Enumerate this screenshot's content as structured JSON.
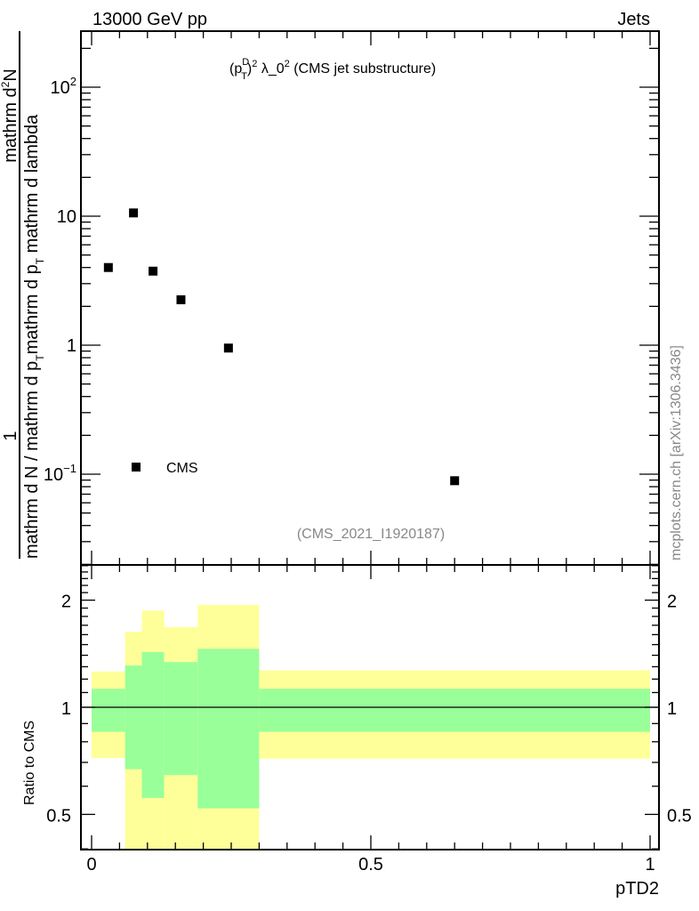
{
  "header": {
    "left": "13000 GeV pp",
    "right": "Jets",
    "watermark": "mcplots.cern.ch [arXiv:1306.3436]"
  },
  "chart_data": [
    {
      "type": "scatter",
      "title_parts": {
        "pre": "(p",
        "sup": "D",
        "sub": "T",
        "post": ")",
        "sup2": "2",
        "mid": " λ_0",
        "sup3": "2",
        "end": " (CMS jet substructure)"
      },
      "analysis_label": "(CMS_2021_I1920187)",
      "ylabel_parts": {
        "num1": "1",
        "num2": "mathrm d",
        "num2_sup": "2",
        "num2_end": "N",
        "den": "mathrm d N / mathrm d p",
        "den_sub": "T",
        "den2": "mathrm d p",
        "den2_sub": "T",
        "den3": " mathrm d lambda"
      },
      "yscale": "log",
      "ylim": [
        0.02,
        267
      ],
      "xlim": [
        -0.02,
        1.015
      ],
      "yticks": [
        {
          "v": 100,
          "label": "10",
          "sup": "2"
        },
        {
          "v": 10,
          "label": "10",
          "sup": ""
        },
        {
          "v": 1,
          "label": "1",
          "sup": ""
        },
        {
          "v": 0.1,
          "label": "10",
          "sup": "−1"
        }
      ],
      "legend": {
        "entries": [
          "CMS"
        ],
        "placement": "lower-left"
      },
      "series": [
        {
          "name": "CMS",
          "x": [
            0.03,
            0.075,
            0.11,
            0.16,
            0.245,
            0.65
          ],
          "y": [
            4.0,
            10.6,
            3.75,
            2.25,
            0.95,
            0.089
          ]
        }
      ]
    },
    {
      "type": "area",
      "ylabel": "Ratio to CMS",
      "xlabel": "pTD2",
      "yscale": "log",
      "ylim": [
        0.4,
        2.5
      ],
      "xlim": [
        -0.02,
        1.015
      ],
      "yticks": [
        {
          "v": 2,
          "label": "2"
        },
        {
          "v": 1,
          "label": "1"
        },
        {
          "v": 0.5,
          "label": "0.5"
        }
      ],
      "xticks": [
        {
          "v": 0,
          "label": "0"
        },
        {
          "v": 0.5,
          "label": "0.5"
        },
        {
          "v": 1,
          "label": "1"
        }
      ],
      "reference_line": 1,
      "bin_edges": [
        0,
        0.06,
        0.09,
        0.13,
        0.19,
        0.3,
        1.0
      ],
      "green_band": {
        "low": [
          0.853,
          0.67,
          0.556,
          0.645,
          0.52,
          0.853
        ],
        "high": [
          1.127,
          1.31,
          1.43,
          1.34,
          1.46,
          1.127
        ]
      },
      "yellow_band": {
        "low": [
          0.72,
          0.3,
          0.3,
          0.3,
          0.3,
          0.717
        ],
        "high": [
          1.26,
          1.63,
          1.87,
          1.68,
          1.94,
          1.27
        ]
      },
      "colors": {
        "green": "#99ff99",
        "yellow": "#ffff99"
      }
    }
  ]
}
